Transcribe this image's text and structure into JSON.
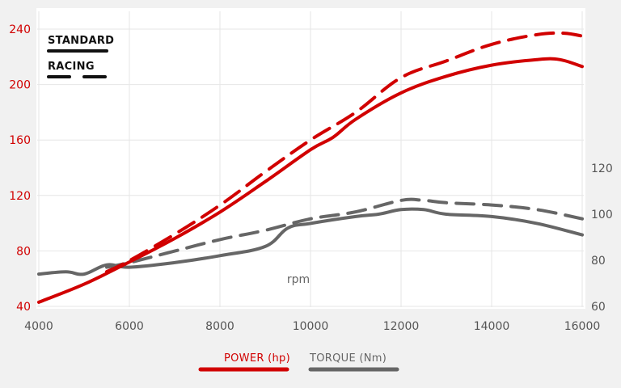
{
  "chart_data": {
    "type": "line",
    "xlabel": "rpm",
    "x_ticks": [
      "4000",
      "6000",
      "8000",
      "10000",
      "12000",
      "14000",
      "16000"
    ],
    "xlim": [
      4000,
      16500
    ],
    "y_left_ticks": [
      "40",
      "80",
      "120",
      "160",
      "200",
      "240"
    ],
    "ylim_left": [
      40,
      240
    ],
    "y_right_ticks": [
      "60",
      "80",
      "100",
      "120"
    ],
    "ylim_right": [
      60,
      130
    ],
    "style_legend": [
      {
        "label": "STANDARD",
        "style": "solid"
      },
      {
        "label": "RACING",
        "style": "dashed"
      }
    ],
    "axis_legend": [
      {
        "label": "POWER (hp)",
        "color": "#d10000"
      },
      {
        "label": "TORQUE (Nm)",
        "color": "#666666"
      }
    ],
    "grid": true,
    "series": [
      {
        "metric": "POWER (hp)",
        "variant": "STANDARD",
        "color": "#d10000",
        "dashed": false,
        "axis": "left",
        "points": [
          [
            4000,
            43
          ],
          [
            5000,
            56
          ],
          [
            6000,
            72
          ],
          [
            7000,
            89
          ],
          [
            8000,
            108
          ],
          [
            9000,
            130
          ],
          [
            10000,
            153
          ],
          [
            10500,
            162
          ],
          [
            11000,
            175
          ],
          [
            12000,
            194
          ],
          [
            13000,
            206
          ],
          [
            14000,
            214
          ],
          [
            15000,
            218
          ],
          [
            15500,
            218
          ],
          [
            16000,
            213
          ]
        ]
      },
      {
        "metric": "POWER (hp)",
        "variant": "RACING",
        "color": "#d10000",
        "dashed": true,
        "axis": "left",
        "points": [
          [
            5500,
            65
          ],
          [
            6000,
            73
          ],
          [
            7000,
            92
          ],
          [
            8000,
            113
          ],
          [
            9000,
            137
          ],
          [
            10000,
            160
          ],
          [
            11000,
            180
          ],
          [
            12000,
            205
          ],
          [
            13000,
            217
          ],
          [
            14000,
            229
          ],
          [
            15000,
            236
          ],
          [
            15600,
            237
          ],
          [
            16000,
            235
          ]
        ]
      },
      {
        "metric": "TORQUE (Nm)",
        "variant": "STANDARD",
        "color": "#666666",
        "dashed": false,
        "axis": "right",
        "points": [
          [
            4000,
            74
          ],
          [
            4600,
            75
          ],
          [
            5000,
            74
          ],
          [
            5500,
            78
          ],
          [
            6000,
            77
          ],
          [
            7000,
            79
          ],
          [
            8000,
            82
          ],
          [
            9000,
            86
          ],
          [
            9500,
            94
          ],
          [
            10000,
            96
          ],
          [
            11000,
            99
          ],
          [
            11500,
            100
          ],
          [
            12000,
            102
          ],
          [
            12500,
            102
          ],
          [
            13000,
            100
          ],
          [
            14000,
            99
          ],
          [
            15000,
            96
          ],
          [
            16000,
            91
          ]
        ]
      },
      {
        "metric": "TORQUE (Nm)",
        "variant": "RACING",
        "color": "#666666",
        "dashed": true,
        "axis": "right",
        "points": [
          [
            5500,
            77
          ],
          [
            6000,
            79
          ],
          [
            7000,
            84
          ],
          [
            8000,
            89
          ],
          [
            9000,
            93
          ],
          [
            10000,
            98
          ],
          [
            11000,
            101
          ],
          [
            12000,
            106
          ],
          [
            12500,
            106
          ],
          [
            13000,
            105
          ],
          [
            14000,
            104
          ],
          [
            15000,
            102
          ],
          [
            16000,
            98
          ]
        ]
      }
    ]
  }
}
